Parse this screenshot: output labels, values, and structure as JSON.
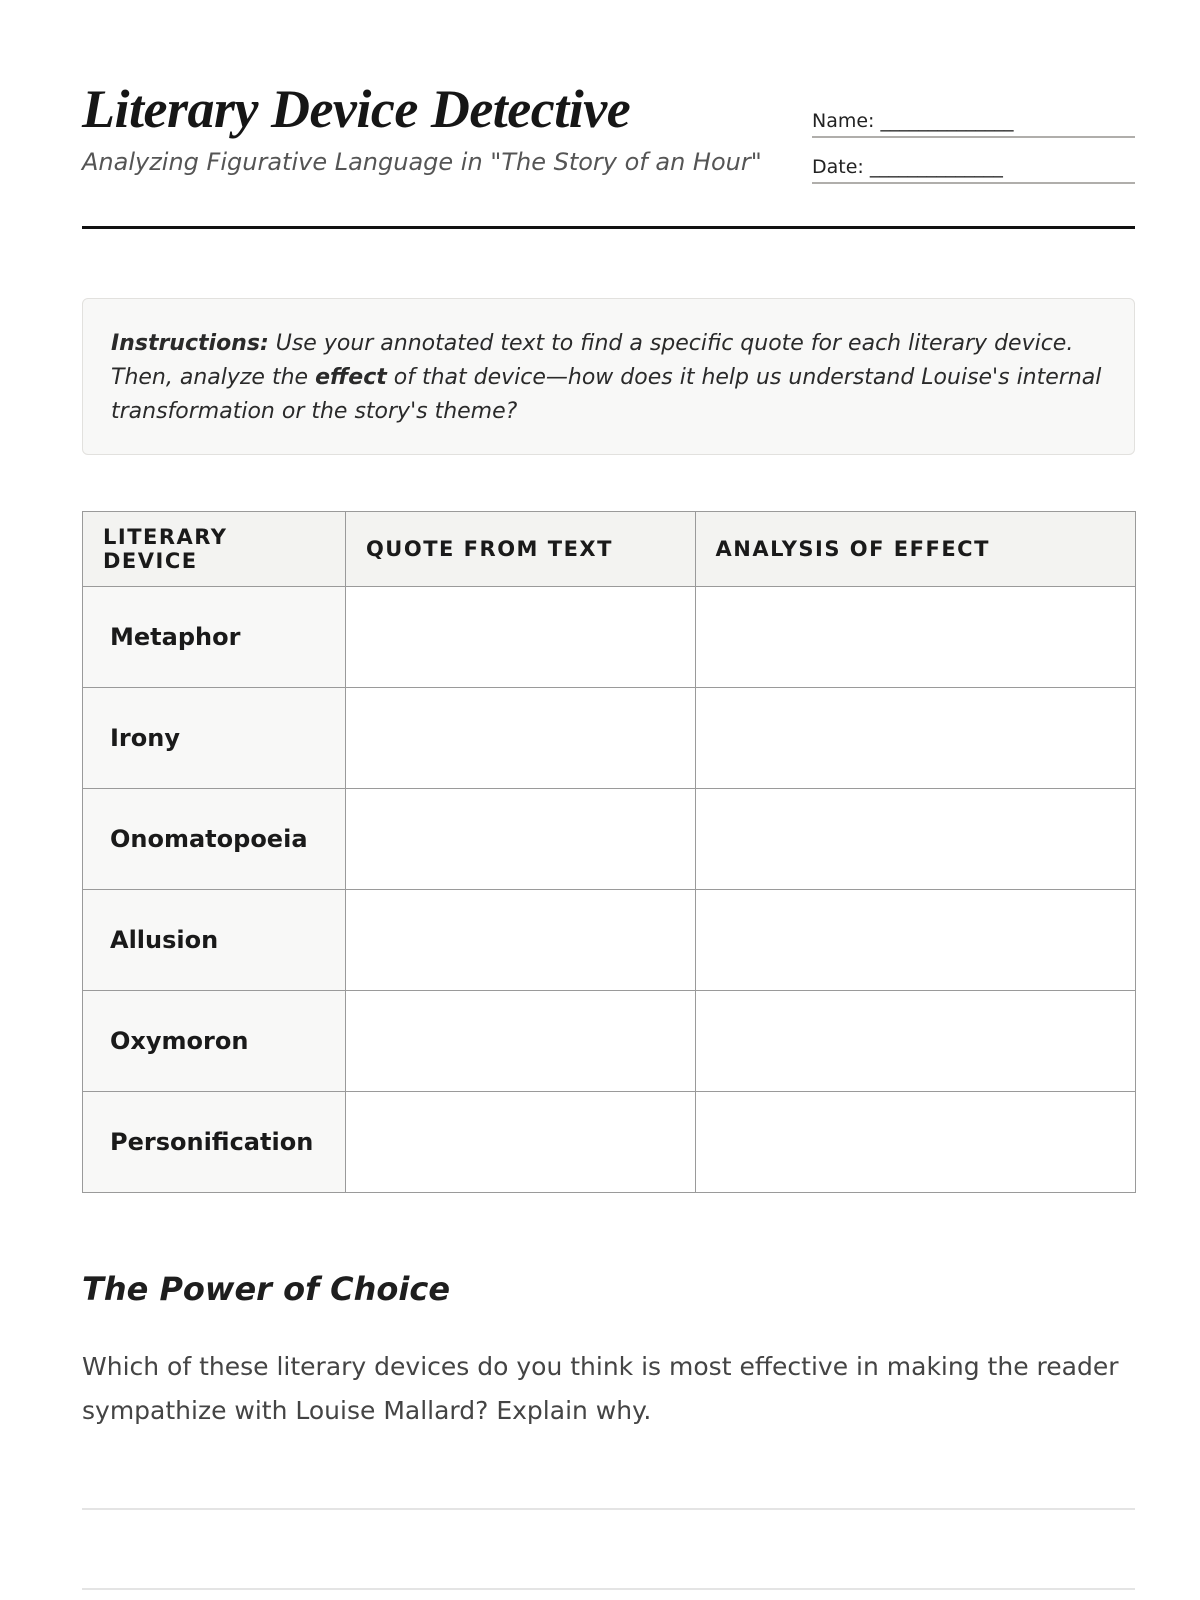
{
  "header": {
    "title": "Literary Device Detective",
    "subtitle": "Analyzing Figurative Language in \"The Story of an Hour\"",
    "name_label": "Name: ______________",
    "date_label": "Date: ______________"
  },
  "instructions": {
    "lead": "Instructions:",
    "text1": " Use your annotated text to find a specific quote for each literary device. Then, analyze the ",
    "bold": "effect",
    "text2": " of that device—how does it help us understand Louise's internal transformation or the story's theme?"
  },
  "table": {
    "headers": [
      "LITERARY DEVICE",
      "QUOTE FROM TEXT",
      "ANALYSIS OF EFFECT"
    ],
    "rows": [
      "Metaphor",
      "Irony",
      "Onomatopoeia",
      "Allusion",
      "Oxymoron",
      "Personification"
    ]
  },
  "reflection": {
    "heading": "The Power of Choice",
    "prompt": "Which of these literary devices do you think is most effective in making the reader sympathize with Louise Mallard? Explain why."
  }
}
